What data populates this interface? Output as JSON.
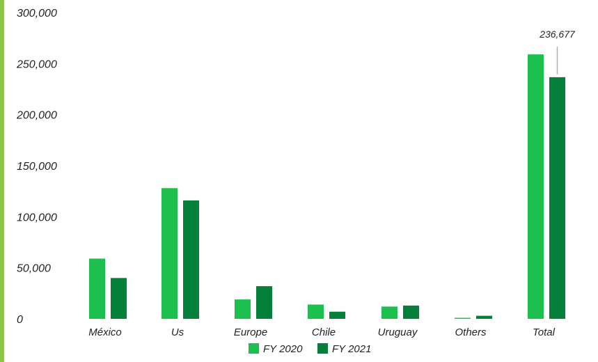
{
  "chart_data": {
    "type": "bar",
    "categories": [
      "México",
      "Us",
      "Europe",
      "Chile",
      "Uruguay",
      "Others",
      "Total"
    ],
    "series": [
      {
        "name": "FY 2020",
        "color": "#1dbf4f",
        "values": [
          59000,
          128000,
          19000,
          14000,
          12000,
          1000,
          259000
        ]
      },
      {
        "name": "FY 2021",
        "color": "#05803a",
        "values": [
          40000,
          116000,
          32000,
          7000,
          13000,
          3000,
          236677
        ]
      }
    ],
    "y_ticks": [
      "0",
      "50,000",
      "100,000",
      "150,000",
      "200,000",
      "250,000",
      "300,000"
    ],
    "ylim": [
      0,
      300000
    ],
    "annotations": [
      {
        "text": "236,677",
        "series_index": 1,
        "category_index": 6
      }
    ],
    "legend_position": "bottom-center",
    "grid": false
  }
}
